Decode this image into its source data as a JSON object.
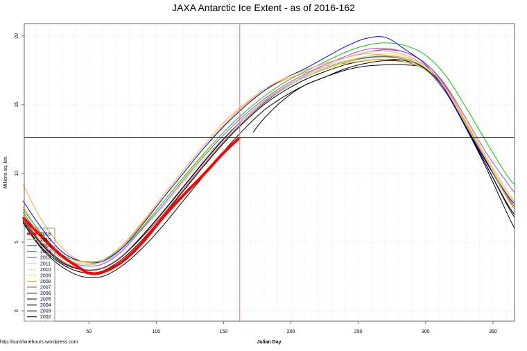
{
  "chart_data": {
    "type": "line",
    "title": "JAXA Antarctic Ice Extent - as of 2016-162",
    "xlabel": "Julian Day",
    "ylabel": "Millions sq. km.",
    "footer": "http://sunshinehours.wordpress.com",
    "xlim": [
      2,
      366
    ],
    "ylim": [
      -0.75,
      20.9
    ],
    "xticks": [
      50,
      100,
      150,
      200,
      250,
      300,
      350
    ],
    "yticks": [
      0,
      5,
      10,
      15,
      20
    ],
    "grid": true,
    "legend_position": "bottom-left",
    "vline_x": 162,
    "hline_y": 12.6,
    "vline_color": "#ff6666",
    "hline_color": "#333322",
    "x": [
      1,
      15,
      30,
      45,
      60,
      75,
      90,
      105,
      120,
      135,
      150,
      165,
      180,
      195,
      210,
      225,
      240,
      255,
      270,
      285,
      300,
      315,
      330,
      345,
      360,
      366
    ],
    "series": [
      {
        "name": "2016",
        "color": "#ff0000",
        "width": 4,
        "x": [
          1,
          15,
          30,
          45,
          50,
          60,
          75,
          90,
          105,
          120,
          135,
          150,
          162
        ],
        "values": [
          6.8,
          5.4,
          4.0,
          3.0,
          2.75,
          2.8,
          3.6,
          5.0,
          6.8,
          8.4,
          9.9,
          11.5,
          12.6
        ]
      },
      {
        "name": "2015",
        "color": "#ffa040",
        "width": 1,
        "values": [
          9.2,
          6.6,
          4.6,
          3.6,
          3.7,
          4.8,
          6.5,
          8.4,
          10.2,
          12.0,
          13.7,
          15.0,
          16.1,
          16.9,
          17.5,
          18.0,
          18.4,
          18.7,
          18.6,
          18.4,
          17.8,
          16.2,
          13.7,
          11.0,
          8.3,
          7.4
        ]
      },
      {
        "name": "2014",
        "color": "#0000ff",
        "width": 1,
        "values": [
          8.0,
          6.0,
          4.3,
          3.6,
          3.6,
          4.6,
          6.3,
          8.2,
          10.0,
          11.8,
          13.4,
          14.8,
          16.0,
          16.9,
          17.6,
          18.4,
          19.2,
          19.8,
          19.9,
          19.0,
          17.9,
          16.0,
          13.4,
          10.8,
          8.5,
          7.8
        ]
      },
      {
        "name": "2013",
        "color": "#00cc00",
        "width": 1,
        "values": [
          7.4,
          5.6,
          4.1,
          3.6,
          3.7,
          4.6,
          6.1,
          7.9,
          9.7,
          11.4,
          13.0,
          14.4,
          15.6,
          16.6,
          17.4,
          18.1,
          18.8,
          19.3,
          19.5,
          19.3,
          18.6,
          17.1,
          14.8,
          12.3,
          9.9,
          9.2
        ]
      },
      {
        "name": "2012",
        "color": "#aa44ff",
        "width": 1,
        "values": [
          7.2,
          5.3,
          3.9,
          3.3,
          3.4,
          4.4,
          6.0,
          7.7,
          9.5,
          11.2,
          12.8,
          14.2,
          15.4,
          16.4,
          17.2,
          17.9,
          18.5,
          19.0,
          19.1,
          18.8,
          18.0,
          16.4,
          14.0,
          11.5,
          9.4,
          8.6
        ]
      },
      {
        "name": "2011",
        "color": "#aadddd",
        "width": 1,
        "values": [
          7.0,
          5.1,
          3.8,
          3.4,
          3.5,
          4.5,
          6.0,
          7.6,
          9.4,
          11.0,
          12.6,
          14.0,
          15.2,
          16.2,
          17.0,
          17.7,
          18.2,
          18.5,
          18.6,
          18.3,
          17.5,
          16.0,
          13.5,
          11.0,
          8.6,
          7.8
        ]
      },
      {
        "name": "2010",
        "color": "#ffcccc",
        "width": 1,
        "values": [
          6.9,
          5.0,
          3.8,
          3.3,
          3.4,
          4.3,
          5.8,
          7.5,
          9.3,
          11.0,
          12.6,
          14.0,
          15.3,
          16.3,
          17.1,
          17.8,
          18.4,
          18.8,
          18.9,
          18.6,
          17.8,
          16.1,
          13.7,
          11.1,
          8.7,
          7.9
        ]
      },
      {
        "name": "2009",
        "color": "#ffee00",
        "width": 1,
        "values": [
          7.1,
          5.2,
          3.9,
          3.5,
          3.6,
          4.6,
          6.2,
          7.9,
          9.6,
          11.3,
          12.8,
          14.2,
          15.4,
          16.3,
          17.0,
          17.6,
          18.1,
          18.5,
          18.7,
          18.5,
          17.7,
          16.2,
          13.8,
          11.2,
          8.8,
          8.0
        ]
      },
      {
        "name": "2008",
        "color": "#ff9900",
        "width": 1,
        "values": [
          7.6,
          5.5,
          4.0,
          3.4,
          3.6,
          4.7,
          6.4,
          8.2,
          10.0,
          11.8,
          13.5,
          14.9,
          16.0,
          16.8,
          17.3,
          17.8,
          18.0,
          18.2,
          18.3,
          18.1,
          17.5,
          16.0,
          13.6,
          11.0,
          8.4,
          7.6
        ]
      },
      {
        "name": "2007",
        "color": "#aa3333",
        "width": 1,
        "values": [
          6.8,
          4.9,
          3.6,
          3.0,
          3.1,
          4.0,
          5.4,
          7.0,
          8.8,
          10.6,
          12.3,
          13.8,
          15.1,
          16.2,
          17.1,
          17.8,
          18.4,
          18.8,
          19.0,
          18.8,
          18.0,
          16.3,
          13.8,
          11.2,
          8.8,
          8.0
        ]
      },
      {
        "name": "2006",
        "color": "#000000",
        "width": 1,
        "values": [
          6.6,
          4.8,
          3.5,
          3.0,
          3.1,
          4.0,
          5.5,
          7.2,
          9.0,
          10.8,
          12.5,
          14.0,
          15.3,
          16.3,
          17.1,
          17.8,
          18.4,
          18.8,
          18.9,
          18.6,
          17.8,
          16.1,
          13.5,
          10.9,
          8.3,
          7.4
        ]
      },
      {
        "name": "2005",
        "color": "#000000",
        "width": 1,
        "values": [
          6.5,
          4.6,
          3.4,
          2.8,
          2.9,
          3.8,
          5.2,
          6.9,
          8.7,
          10.5,
          12.2,
          13.7,
          15.0,
          16.0,
          16.8,
          17.4,
          17.9,
          18.2,
          18.3,
          18.2,
          17.6,
          16.0,
          13.4,
          10.6,
          7.9,
          7.0
        ]
      },
      {
        "name": "2004",
        "color": "#777777",
        "width": 2,
        "values": [
          6.8,
          4.9,
          3.6,
          3.0,
          3.1,
          4.0,
          5.5,
          7.2,
          9.0,
          10.8,
          12.5,
          14.0,
          15.2,
          16.2,
          17.0,
          17.6,
          18.1,
          18.4,
          18.5,
          18.3,
          17.6,
          16.0,
          13.5,
          10.9,
          8.4,
          7.6
        ]
      },
      {
        "name": "2003",
        "color": "#000000",
        "width": 1,
        "x": [
          172,
          180,
          195,
          210,
          225,
          240,
          255,
          270,
          285,
          300,
          315,
          330,
          345,
          360,
          366
        ],
        "values": [
          13.0,
          14.0,
          15.4,
          16.4,
          17.0,
          17.6,
          18.0,
          18.2,
          18.1,
          17.5,
          15.9,
          13.3,
          10.6,
          7.8,
          6.8
        ]
      },
      {
        "name": "2002",
        "color": "#000000",
        "width": 1,
        "values": [
          6.4,
          4.5,
          3.2,
          2.5,
          2.5,
          3.3,
          4.6,
          6.2,
          8.0,
          9.8,
          11.6,
          13.2,
          14.6,
          15.6,
          16.4,
          17.0,
          17.5,
          17.8,
          17.9,
          17.9,
          17.6,
          16.0,
          13.3,
          10.4,
          7.2,
          6.0
        ]
      }
    ]
  }
}
